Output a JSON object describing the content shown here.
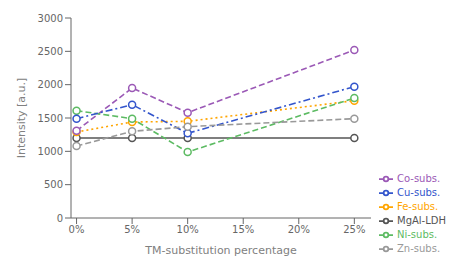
{
  "chart_data": {
    "type": "line",
    "x": [
      0,
      5,
      10,
      25
    ],
    "xlabel": "TM-substitution percentage",
    "ylabel": "Intensity [a.u.]",
    "xlim": [
      -0.5,
      26.5
    ],
    "xticks": [
      {
        "value": 0,
        "label": "0%"
      },
      {
        "value": 5,
        "label": "5%"
      },
      {
        "value": 10,
        "label": "10%"
      },
      {
        "value": 15,
        "label": "15%"
      },
      {
        "value": 20,
        "label": "20%"
      },
      {
        "value": 25,
        "label": "25%"
      }
    ],
    "ylim": [
      0,
      3000
    ],
    "yticks": [
      0,
      500,
      1000,
      1500,
      2000,
      2500,
      3000
    ],
    "grid": false,
    "legend": "lower right",
    "series": [
      {
        "name": "MgAl-LDH",
        "color": "#555555",
        "line_style": "solid",
        "marker": "circle",
        "values": [
          1200,
          1200,
          1200,
          1200
        ]
      },
      {
        "name": "Fe-subs.",
        "color": "#FFA500",
        "line_style": "dotted",
        "marker": "circle",
        "values": [
          1290,
          1440,
          1450,
          1760
        ]
      },
      {
        "name": "Co-subs.",
        "color": "#9B59B6",
        "line_style": "dashed",
        "marker": "circle",
        "values": [
          1310,
          1950,
          1580,
          2520
        ]
      },
      {
        "name": "Ni-subs.",
        "color": "#5DBB63",
        "line_style": "dashed",
        "marker": "circle",
        "values": [
          1610,
          1490,
          990,
          1800
        ]
      },
      {
        "name": "Cu-subs.",
        "color": "#3355CC",
        "line_style": "dashdot",
        "marker": "circle",
        "values": [
          1490,
          1700,
          1270,
          1970
        ]
      },
      {
        "name": "Zn-subs.",
        "color": "#999999",
        "line_style": "dashed",
        "marker": "circle",
        "values": [
          1080,
          1300,
          1370,
          1490
        ]
      }
    ]
  }
}
